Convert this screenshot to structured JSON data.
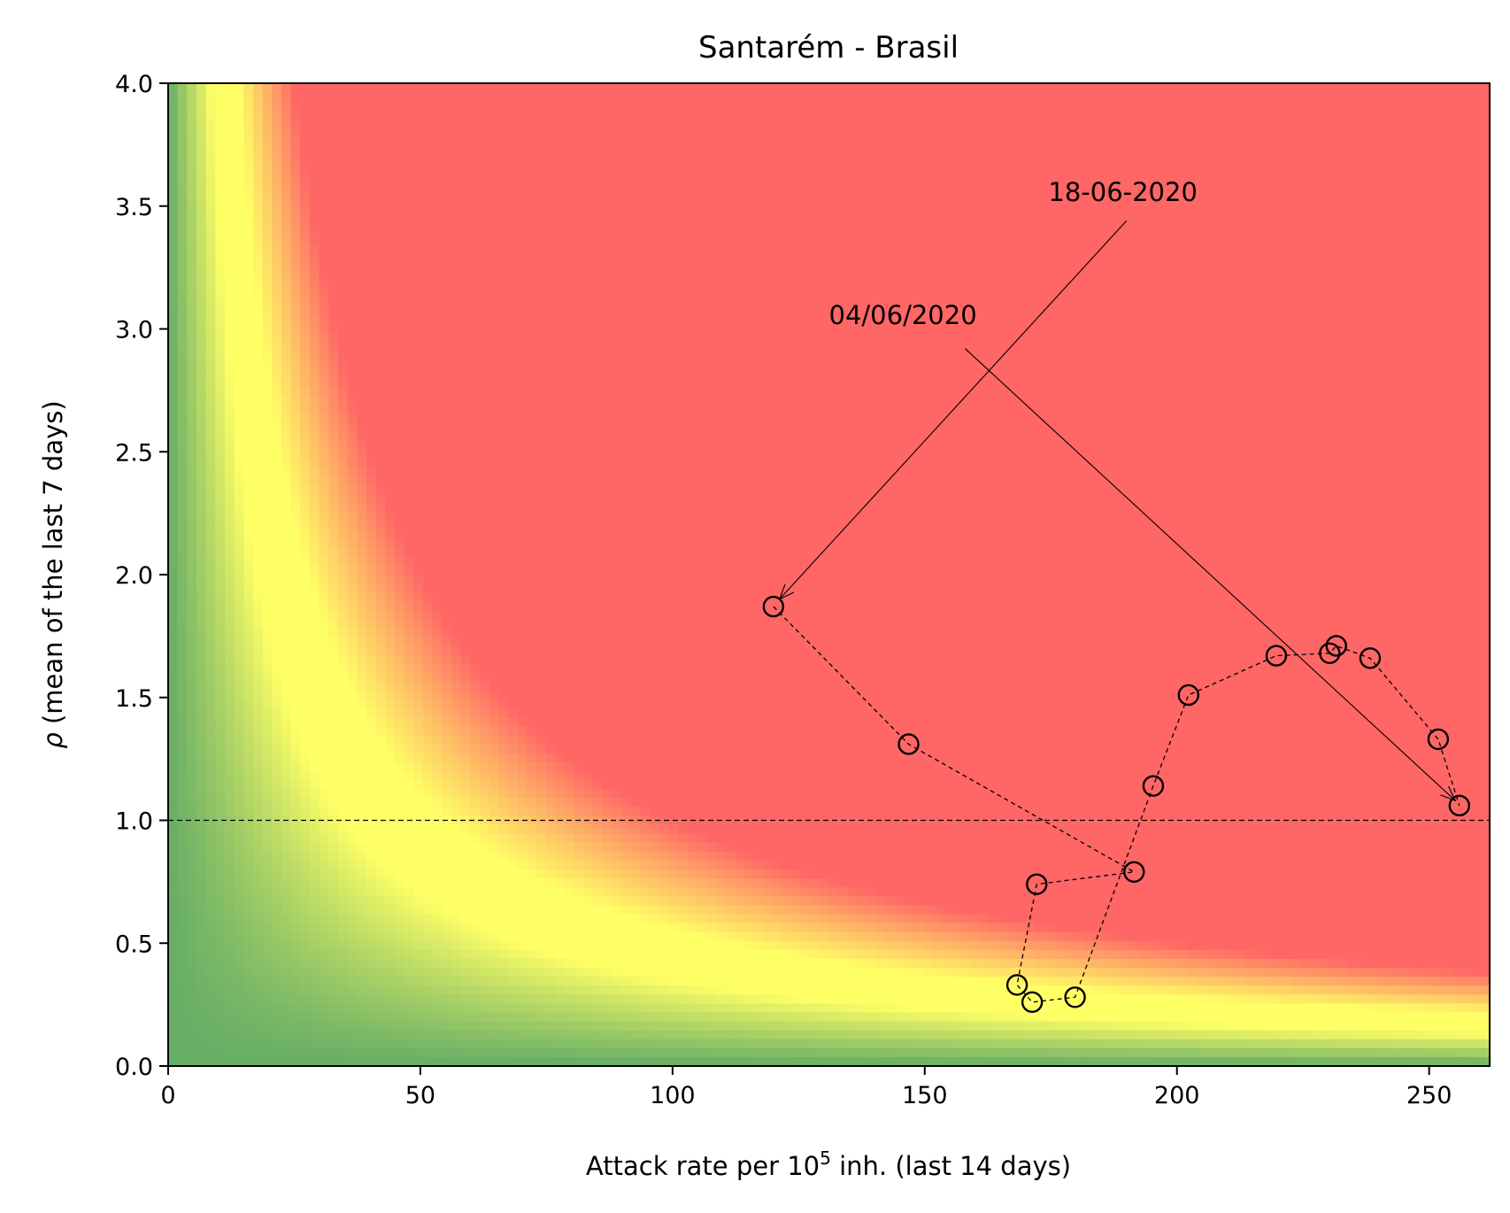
{
  "chart_data": {
    "type": "scatter",
    "title": "Santarém - Brasil",
    "xlabel_parts": [
      "Attack rate per 10",
      "5",
      " inh. (last 14 days)"
    ],
    "ylabel_symbol": "ρ",
    "ylabel_rest": " (mean of the last 7 days)",
    "xlim": [
      0,
      262
    ],
    "ylim": [
      0,
      4
    ],
    "xticks": [
      0,
      50,
      100,
      150,
      200,
      250
    ],
    "yticks": [
      0.0,
      0.5,
      1.0,
      1.5,
      2.0,
      2.5,
      3.0,
      3.5,
      4.0
    ],
    "xtick_labels": [
      "0",
      "50",
      "100",
      "150",
      "200",
      "250"
    ],
    "ytick_labels": [
      "0.0",
      "0.5",
      "1.0",
      "1.5",
      "2.0",
      "2.5",
      "3.0",
      "3.5",
      "4.0"
    ],
    "reference_line_y": 1.0,
    "background": {
      "type": "risk-heatmap",
      "colors": {
        "low": "#66ad66",
        "mid": "#ffff66",
        "high": "#ff6666"
      }
    },
    "series": [
      {
        "x": [
          120,
          146.8,
          191.5,
          172.2,
          168.3,
          171.3,
          179.8,
          195.3,
          202.3,
          219.7,
          230.3,
          231.6,
          238.3,
          251.8,
          256.0
        ],
        "y": [
          1.87,
          1.31,
          0.79,
          0.74,
          0.33,
          0.26,
          0.28,
          1.14,
          1.51,
          1.67,
          1.68,
          1.71,
          1.66,
          1.33,
          1.06
        ]
      }
    ],
    "annotations": [
      {
        "text": "18-06-2020",
        "text_x": 174.5,
        "text_y": 3.52,
        "arrow_from": [
          190,
          3.44
        ],
        "arrow_to": [
          121.2,
          1.9
        ]
      },
      {
        "text": "04/06/2020",
        "text_x": 131,
        "text_y": 3.02,
        "arrow_from": [
          158,
          2.92
        ],
        "arrow_to": [
          255.2,
          1.08
        ]
      }
    ]
  }
}
